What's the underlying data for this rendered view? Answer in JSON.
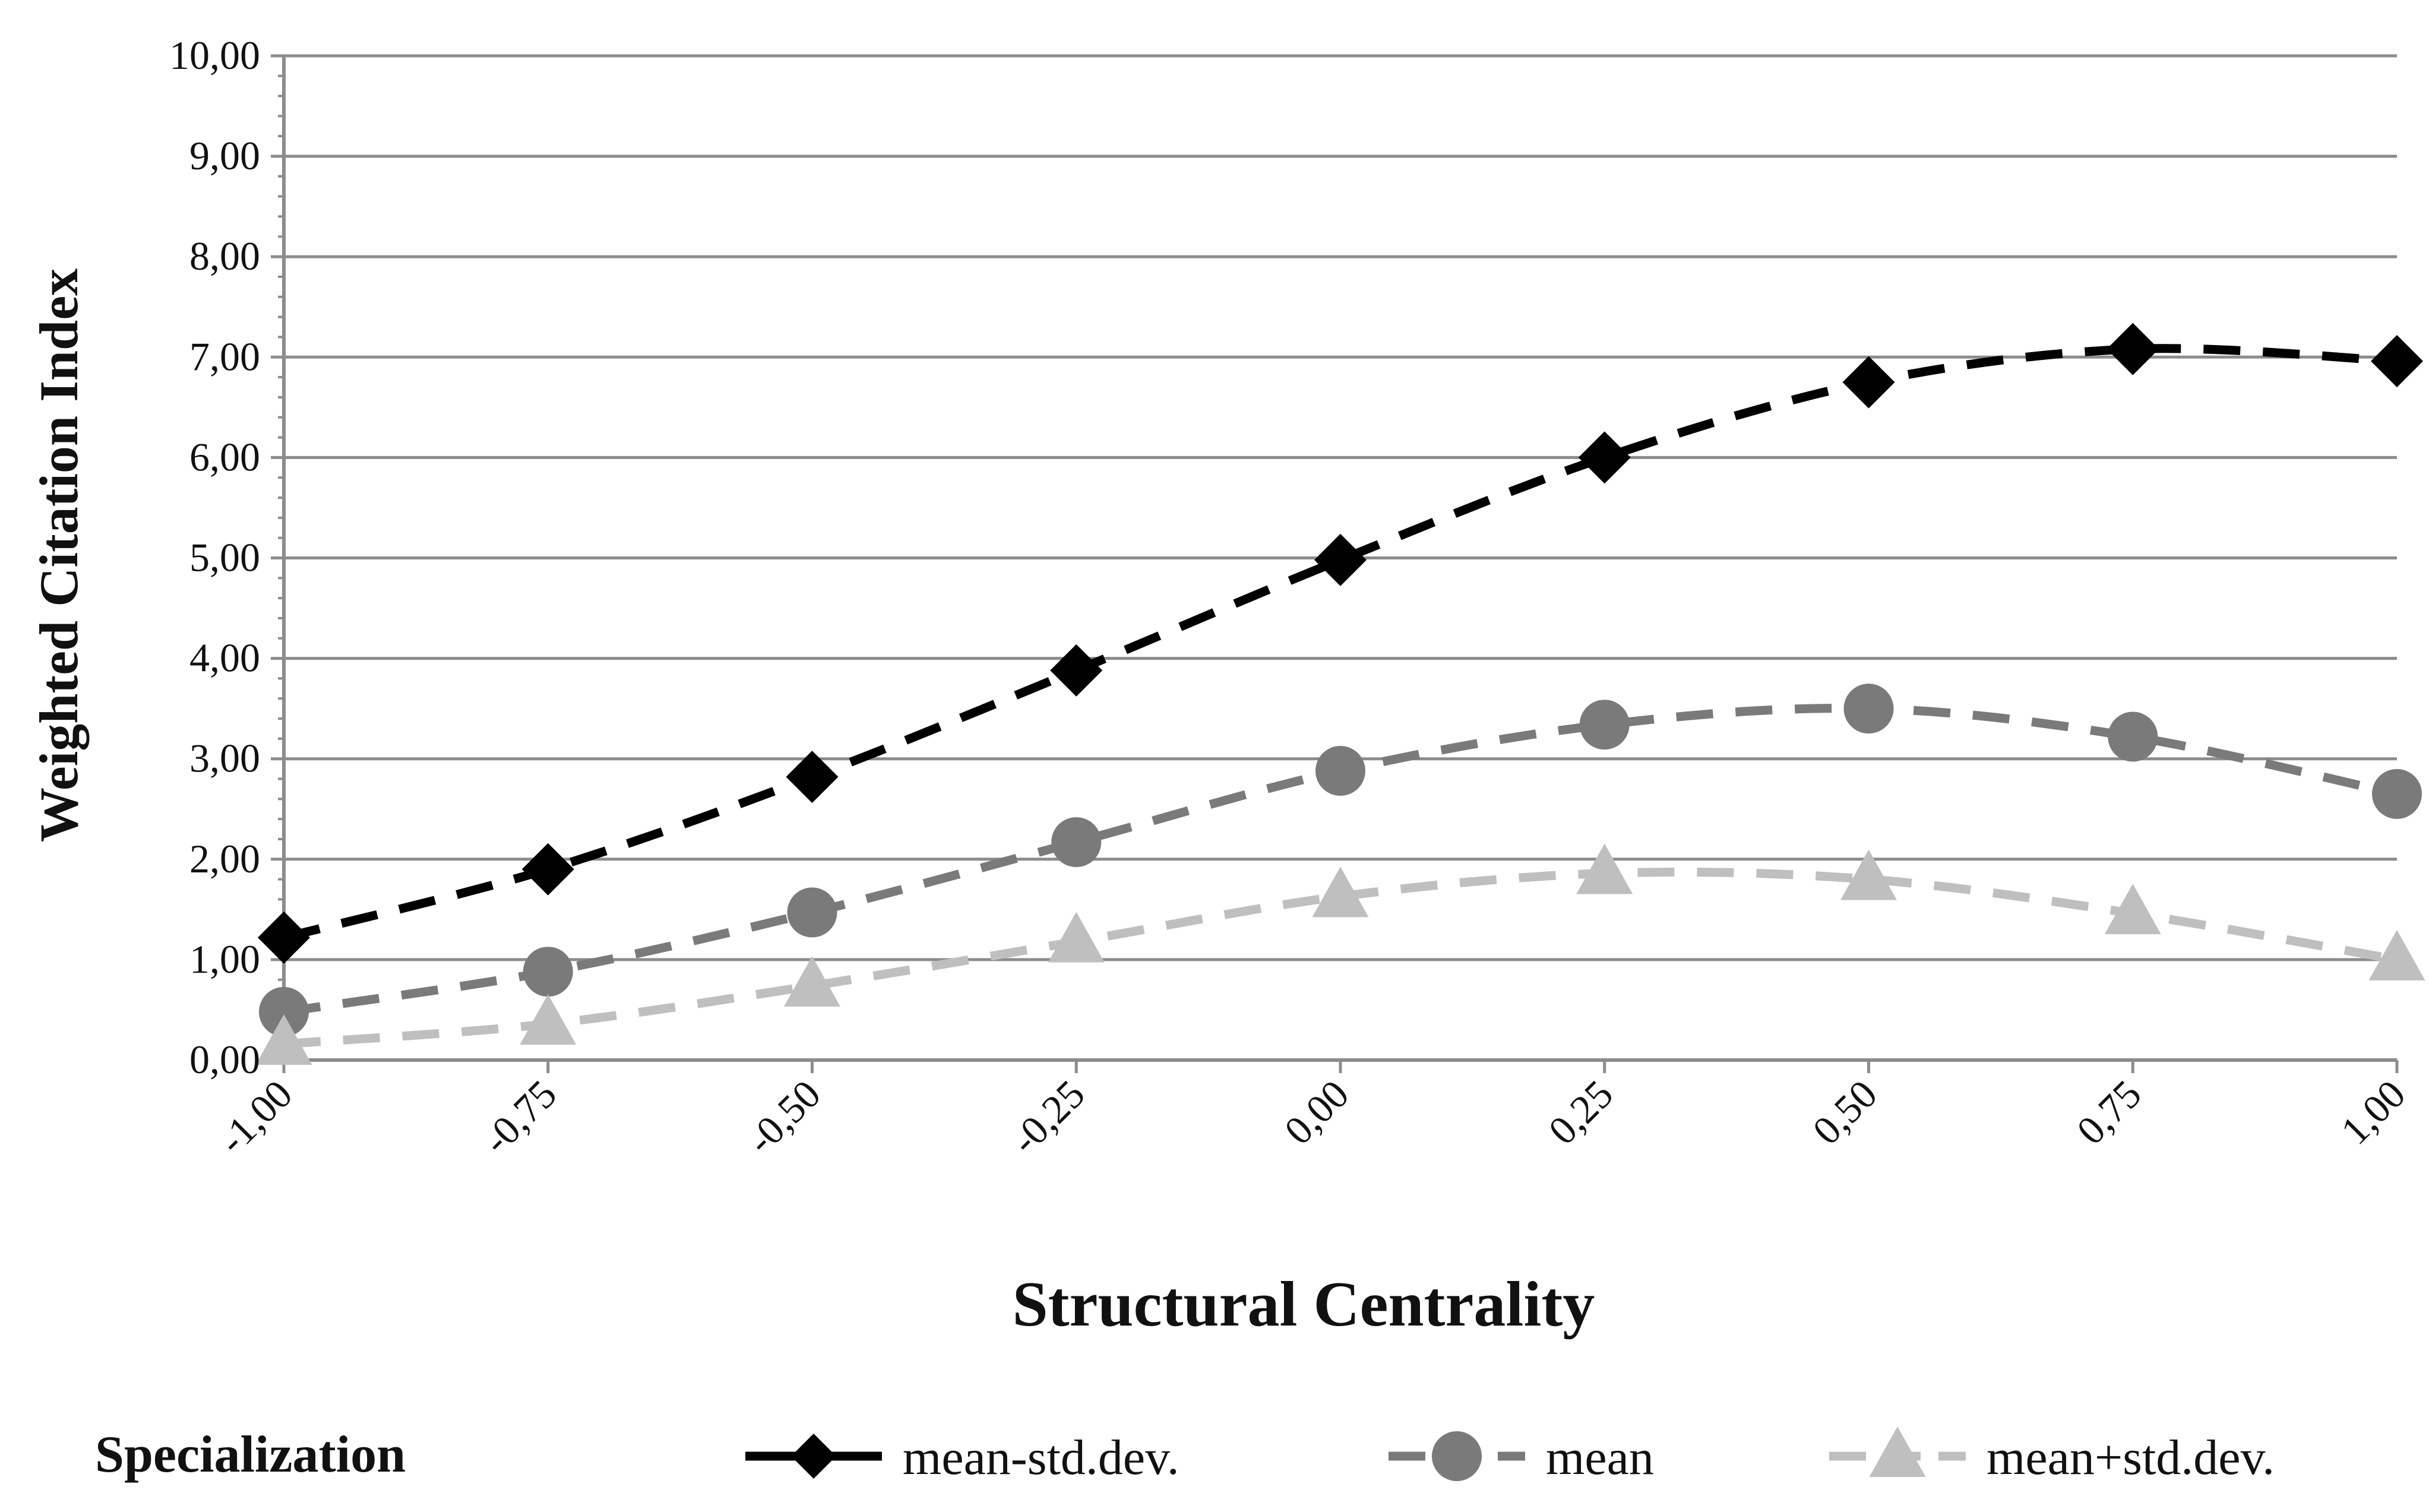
{
  "chart_data": {
    "type": "line",
    "title": "",
    "xlabel": "Structural Centrality",
    "ylabel": "Weighted Citation Index",
    "x": [
      -1.0,
      -0.75,
      -0.5,
      -0.25,
      0.0,
      0.25,
      0.5,
      0.75,
      1.0
    ],
    "x_tick_labels": [
      "-1,00",
      "-0,75",
      "-0,50",
      "-0,25",
      "0,00",
      "0,25",
      "0,50",
      "0,75",
      "1,00"
    ],
    "y_tick_labels": [
      "0,00",
      "1,00",
      "2,00",
      "3,00",
      "4,00",
      "5,00",
      "6,00",
      "7,00",
      "8,00",
      "9,00",
      "10,00"
    ],
    "xlim": [
      -1.0,
      1.0
    ],
    "ylim": [
      0,
      10
    ],
    "grid": "horizontal",
    "legend_title": "Specialization",
    "legend_position": "bottom",
    "series": [
      {
        "name": "mean-std.dev.",
        "marker": "diamond",
        "color": "#000000",
        "values": [
          1.22,
          1.9,
          2.82,
          3.88,
          4.98,
          6.0,
          6.75,
          7.08,
          6.96
        ]
      },
      {
        "name": "mean",
        "marker": "circle",
        "color": "#7a7a7a",
        "values": [
          0.48,
          0.88,
          1.47,
          2.17,
          2.88,
          3.34,
          3.5,
          3.22,
          2.65
        ]
      },
      {
        "name": "mean+std.dev.",
        "marker": "triangle",
        "color": "#bfbfbf",
        "values": [
          0.16,
          0.36,
          0.74,
          1.18,
          1.63,
          1.86,
          1.8,
          1.46,
          1.0
        ]
      }
    ]
  }
}
